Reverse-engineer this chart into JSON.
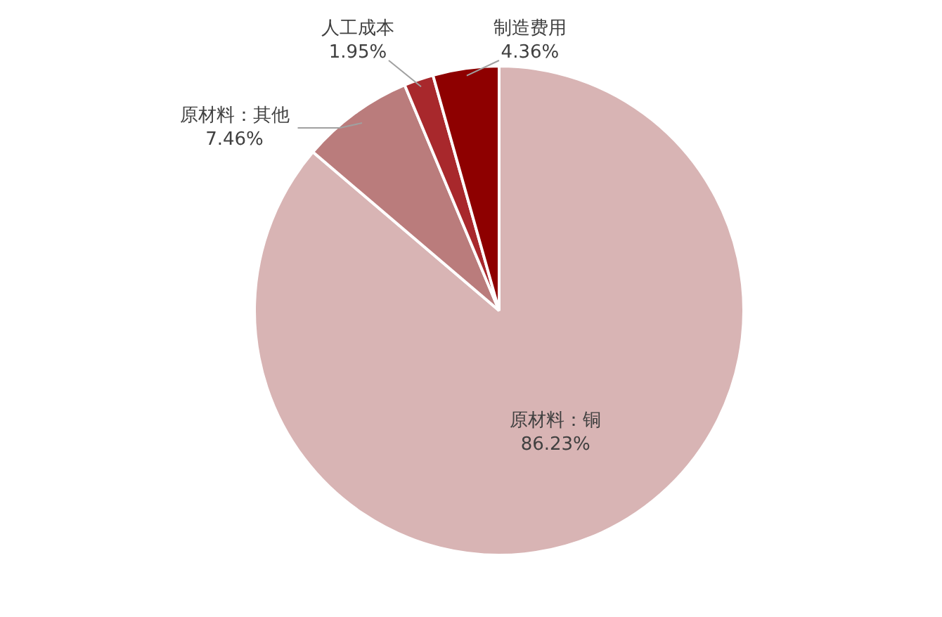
{
  "chart_data": {
    "type": "pie",
    "categories": [
      "原材料：铜",
      "原材料：其他",
      "人工成本",
      "制造费用"
    ],
    "values": [
      86.23,
      7.46,
      1.95,
      4.36
    ],
    "value_labels": [
      "86.23%",
      "7.46%",
      "1.95%",
      "4.36%"
    ],
    "colors": [
      "#d8b4b4",
      "#ba7c7c",
      "#a8282c",
      "#8e0000"
    ],
    "legend": false
  }
}
